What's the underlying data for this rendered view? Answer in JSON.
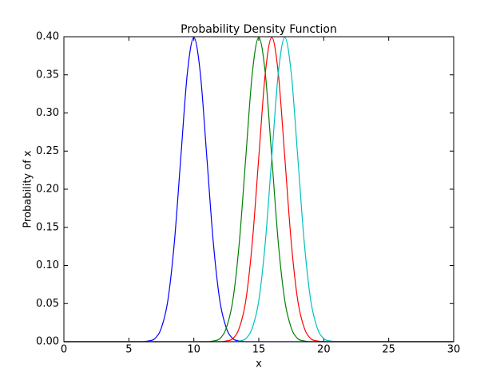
{
  "chart_data": {
    "type": "line",
    "title": "Probability Density Function",
    "x_label": "x",
    "y_label": "Probability of x",
    "x": [
      0,
      5,
      5.5,
      6,
      6.5,
      7,
      7.5,
      8,
      8.5,
      9,
      9.5,
      10,
      10.5,
      11,
      11.5,
      12,
      12.5,
      13,
      13.5,
      14,
      14.5,
      15,
      15.5,
      16,
      16.5,
      17,
      17.5,
      18,
      18.5,
      19,
      19.5,
      20,
      20.5,
      21,
      21.5,
      22,
      30
    ],
    "series": [
      {
        "color": "#0000ff",
        "values": [
          0,
          0,
          0,
          0,
          0.001,
          0.004,
          0.018,
          0.054,
          0.13,
          0.242,
          0.352,
          0.399,
          0.352,
          0.242,
          0.13,
          0.054,
          0.018,
          0.004,
          0.001,
          0,
          0,
          0,
          0,
          0,
          0,
          0,
          0,
          0,
          0,
          0,
          0,
          0,
          0,
          0,
          0,
          0,
          0
        ]
      },
      {
        "color": "#008000",
        "values": [
          0,
          0,
          0,
          0,
          0,
          0,
          0,
          0,
          0,
          0,
          0,
          0,
          0,
          0,
          0.001,
          0.004,
          0.018,
          0.054,
          0.13,
          0.242,
          0.352,
          0.399,
          0.352,
          0.242,
          0.13,
          0.054,
          0.018,
          0.004,
          0.001,
          0,
          0,
          0,
          0,
          0,
          0,
          0,
          0
        ]
      },
      {
        "color": "#ff0000",
        "values": [
          0,
          0,
          0,
          0,
          0,
          0,
          0,
          0,
          0,
          0,
          0,
          0,
          0,
          0,
          0,
          0,
          0.001,
          0.004,
          0.018,
          0.054,
          0.13,
          0.242,
          0.352,
          0.399,
          0.352,
          0.242,
          0.13,
          0.054,
          0.018,
          0.004,
          0.001,
          0,
          0,
          0,
          0,
          0,
          0
        ]
      },
      {
        "color": "#00bfbf",
        "values": [
          0,
          0,
          0,
          0,
          0,
          0,
          0,
          0,
          0,
          0,
          0,
          0,
          0,
          0,
          0,
          0,
          0,
          0,
          0.001,
          0.004,
          0.018,
          0.054,
          0.13,
          0.242,
          0.352,
          0.399,
          0.352,
          0.242,
          0.13,
          0.054,
          0.018,
          0.004,
          0.001,
          0,
          0,
          0,
          0
        ]
      }
    ],
    "xlim": [
      0,
      30
    ],
    "xticks": [
      0,
      5,
      10,
      15,
      20,
      25,
      30
    ],
    "ylim": [
      0,
      0.4
    ],
    "yticks": [
      {
        "value": 0,
        "label": "0.00"
      },
      {
        "value": 0.05,
        "label": "0.05"
      },
      {
        "value": 0.1,
        "label": "0.10"
      },
      {
        "value": 0.15,
        "label": "0.15"
      },
      {
        "value": 0.2,
        "label": "0.20"
      },
      {
        "value": 0.25,
        "label": "0.25"
      },
      {
        "value": 0.3,
        "label": "0.30"
      },
      {
        "value": 0.35,
        "label": "0.35"
      },
      {
        "value": 0.4,
        "label": "0.40"
      }
    ],
    "grid": false
  }
}
